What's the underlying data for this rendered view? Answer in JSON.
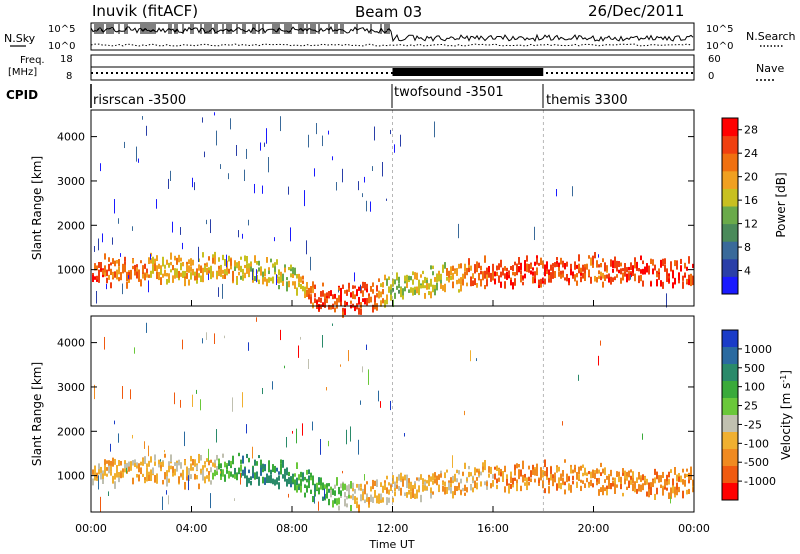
{
  "header": {
    "station": "Inuvik (fitACF)",
    "beam": "Beam 03",
    "date": "26/Dec/2011"
  },
  "side_labels": {
    "nsky": "N.Sky",
    "freq_line1": "Freq.",
    "freq_line2": "[MHz]",
    "cpid": "CPID",
    "nsearch": "N.Search",
    "nave": "Nave"
  },
  "noise_panel": {
    "left_ticks": [
      "10^5",
      "10^0"
    ],
    "right_ticks": [
      "10^5",
      "10^0"
    ]
  },
  "freq_panel": {
    "left_ticks": [
      "18",
      "8"
    ],
    "right_ticks": [
      "60",
      "0"
    ]
  },
  "cpid_segments": [
    {
      "label": "risrscan -3500",
      "start_hour": 0
    },
    {
      "label": "twofsound -3501",
      "start_hour": 12
    },
    {
      "label": "themis 3300",
      "start_hour": 18
    }
  ],
  "chart_data": [
    {
      "type": "heatmap",
      "quantity": "Power",
      "ylabel": "Slant Range [km]",
      "xlabel": "Time UT",
      "x_ticks": [
        "00:00",
        "04:00",
        "08:00",
        "12:00",
        "16:00",
        "20:00",
        "00:00"
      ],
      "xlim_hours": [
        0,
        24
      ],
      "y_ticks": [
        1000,
        2000,
        3000,
        4000
      ],
      "ylim": [
        180,
        4600
      ],
      "colorbar": {
        "label": "Power [dB]",
        "ticks": [
          "4",
          "8",
          "12",
          "16",
          "20",
          "24",
          "28"
        ],
        "range": [
          0,
          30
        ],
        "colors": [
          "#1a1aff",
          "#2a3fa8",
          "#3a6a9a",
          "#4a8a5a",
          "#6aaa4a",
          "#c8c020",
          "#f0a020",
          "#f07010",
          "#f04010",
          "#ff0000"
        ]
      },
      "main_band": [
        {
          "hour": 0,
          "range": 1000,
          "power": 26
        },
        {
          "hour": 2,
          "range": 1100,
          "power": 22
        },
        {
          "hour": 4,
          "range": 1050,
          "power": 20
        },
        {
          "hour": 6,
          "range": 1100,
          "power": 18
        },
        {
          "hour": 8,
          "range": 900,
          "power": 16
        },
        {
          "hour": 9,
          "range": 400,
          "power": 26
        },
        {
          "hour": 11,
          "range": 400,
          "power": 26
        },
        {
          "hour": 12,
          "range": 650,
          "power": 14
        },
        {
          "hour": 14,
          "range": 850,
          "power": 18
        },
        {
          "hour": 16,
          "range": 1000,
          "power": 26
        },
        {
          "hour": 18,
          "range": 1000,
          "power": 28
        },
        {
          "hour": 20,
          "range": 1050,
          "power": 24
        },
        {
          "hour": 22,
          "range": 1000,
          "power": 28
        },
        {
          "hour": 24,
          "range": 1000,
          "power": 26
        }
      ]
    },
    {
      "type": "heatmap",
      "quantity": "Velocity",
      "ylabel": "Slant Range [km]",
      "xlabel": "Time UT",
      "x_ticks": [
        "00:00",
        "04:00",
        "08:00",
        "12:00",
        "16:00",
        "20:00",
        "00:00"
      ],
      "xlim_hours": [
        0,
        24
      ],
      "y_ticks": [
        1000,
        2000,
        3000,
        4000
      ],
      "ylim": [
        180,
        4600
      ],
      "colorbar": {
        "label": "Velocity [m s^-1]",
        "ticks": [
          "1000",
          "500",
          "100",
          "25",
          "-25",
          "-100",
          "-500",
          "-1000"
        ],
        "colors": [
          "#1a3cc8",
          "#2a6aa0",
          "#2a8a6a",
          "#3aaa3a",
          "#6ac83a",
          "#c0c0b0",
          "#f0b030",
          "#f08a20",
          "#f05a10",
          "#ff0000"
        ]
      },
      "main_band": [
        {
          "hour": 0,
          "range": 1150,
          "velocity": -100
        },
        {
          "hour": 2,
          "range": 1200,
          "velocity": -100
        },
        {
          "hour": 4,
          "range": 1150,
          "velocity": -100
        },
        {
          "hour": 6,
          "range": 1200,
          "velocity": 100
        },
        {
          "hour": 8,
          "range": 1000,
          "velocity": 100
        },
        {
          "hour": 10,
          "range": 600,
          "velocity": 0
        },
        {
          "hour": 12,
          "range": 750,
          "velocity": -100
        },
        {
          "hour": 14,
          "range": 900,
          "velocity": -100
        },
        {
          "hour": 16,
          "range": 1050,
          "velocity": -100
        },
        {
          "hour": 18,
          "range": 1050,
          "velocity": -500
        },
        {
          "hour": 20,
          "range": 1000,
          "velocity": -100
        },
        {
          "hour": 22,
          "range": 900,
          "velocity": -500
        },
        {
          "hour": 24,
          "range": 900,
          "velocity": -500
        }
      ]
    }
  ]
}
